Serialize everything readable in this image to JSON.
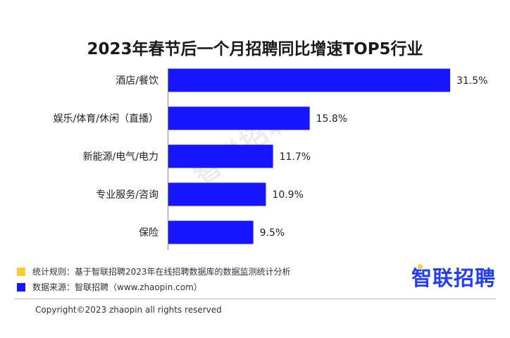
{
  "title": "2023年春节后一个月招聘同比增速TOP5行业",
  "chart_data": {
    "type": "bar",
    "orientation": "horizontal",
    "categories": [
      "酒店/餐饮",
      "娱乐/体育/休闲（直播）",
      "新能源/电气/电力",
      "专业服务/咨询",
      "保险"
    ],
    "values": [
      31.5,
      15.8,
      11.7,
      10.9,
      9.5
    ],
    "value_labels": [
      "31.5%",
      "15.8%",
      "11.7%",
      "10.9%",
      "9.5%"
    ],
    "unit": "%",
    "xlim": [
      0,
      31.5
    ],
    "grid": false,
    "legend": "none",
    "bar_color": "#1515ff"
  },
  "watermark": "智联招聘",
  "footnotes": [
    {
      "text": "统计规则：基于智联招聘2023年在线招聘数据库的数据监测统计分析",
      "color": "#ffcc33"
    },
    {
      "text": "数据来源：智联招聘（www.zhaopin.com）",
      "color": "#1515ff"
    }
  ],
  "logo": {
    "text": "智联招聘",
    "color": "#1f3cff",
    "dot_color": "#ffcc33"
  },
  "copyright": "Copyright©2023 zhaopin all rights reserved"
}
